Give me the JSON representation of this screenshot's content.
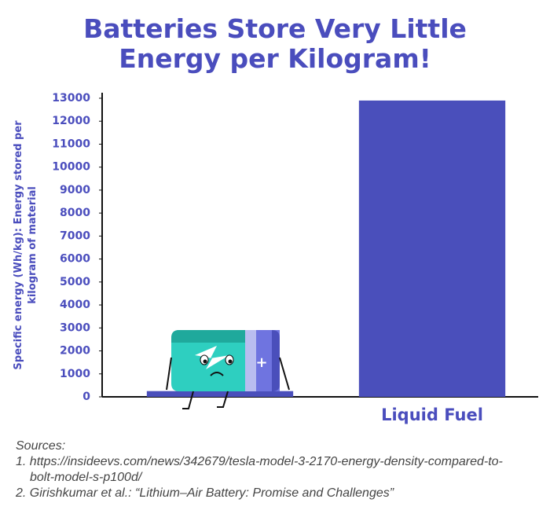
{
  "chart_data": {
    "type": "bar",
    "title": [
      "Batteries Store Very Little",
      "Energy per Kilogram!"
    ],
    "ylabel": [
      "Specific energy (Wh/kg): Energy stored per",
      "kilogram of material"
    ],
    "categories": [
      null,
      "Liquid Fuel"
    ],
    "values": [
      250,
      12900
    ],
    "color": "#4a4fbb",
    "ylim": [
      0,
      13000
    ],
    "yticks": [
      0,
      1000,
      2000,
      3000,
      4000,
      5000,
      6000,
      7000,
      8000,
      9000,
      10000,
      11000,
      12000,
      13000
    ]
  },
  "sources": {
    "heading": "Sources:",
    "items": [
      "1. https://insideevs.com/news/342679/tesla-model-3-2170-energy-density-compared-to-bolt-model-s-p100d/",
      "2. Girishkumar et al.: “Lithium–Air Battery: Promise and Challenges”"
    ]
  }
}
